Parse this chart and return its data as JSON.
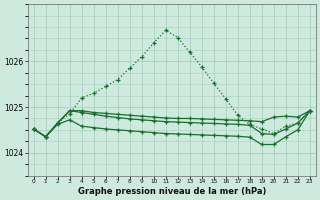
{
  "title": "Graphe pression niveau de la mer (hPa)",
  "bg_color": "#ceeadf",
  "grid_color": "#aacfbf",
  "line_color": "#1a6e2e",
  "x_labels": [
    "0",
    "1",
    "2",
    "3",
    "4",
    "5",
    "6",
    "7",
    "8",
    "9",
    "10",
    "11",
    "12",
    "13",
    "14",
    "15",
    "16",
    "17",
    "18",
    "19",
    "20",
    "21",
    "22",
    "23"
  ],
  "xlim": [
    -0.5,
    23.5
  ],
  "ylim": [
    1023.5,
    1027.2
  ],
  "yticks": [
    1024,
    1025,
    1026
  ],
  "series1": [
    1024.52,
    1024.35,
    1024.65,
    1024.85,
    1025.2,
    1025.3,
    1025.45,
    1025.6,
    1025.85,
    1026.1,
    1026.4,
    1026.68,
    1026.52,
    1026.2,
    1025.88,
    1025.52,
    1025.18,
    1024.82,
    1024.62,
    1024.52,
    1024.42,
    1024.58,
    1024.65,
    1024.92
  ],
  "series2": [
    1024.52,
    1024.35,
    1024.65,
    1024.92,
    1024.92,
    1024.88,
    1024.86,
    1024.84,
    1024.82,
    1024.8,
    1024.78,
    1024.76,
    1024.75,
    1024.75,
    1024.74,
    1024.73,
    1024.72,
    1024.71,
    1024.7,
    1024.68,
    1024.78,
    1024.8,
    1024.78,
    1024.92
  ],
  "series3": [
    1024.52,
    1024.35,
    1024.65,
    1024.92,
    1024.88,
    1024.84,
    1024.8,
    1024.77,
    1024.74,
    1024.72,
    1024.7,
    1024.68,
    1024.67,
    1024.66,
    1024.65,
    1024.64,
    1024.63,
    1024.62,
    1024.6,
    1024.42,
    1024.4,
    1024.52,
    1024.65,
    1024.92
  ],
  "series4": [
    1024.52,
    1024.35,
    1024.62,
    1024.72,
    1024.58,
    1024.55,
    1024.52,
    1024.5,
    1024.48,
    1024.46,
    1024.44,
    1024.42,
    1024.41,
    1024.4,
    1024.39,
    1024.38,
    1024.37,
    1024.36,
    1024.34,
    1024.18,
    1024.18,
    1024.35,
    1024.5,
    1024.92
  ]
}
